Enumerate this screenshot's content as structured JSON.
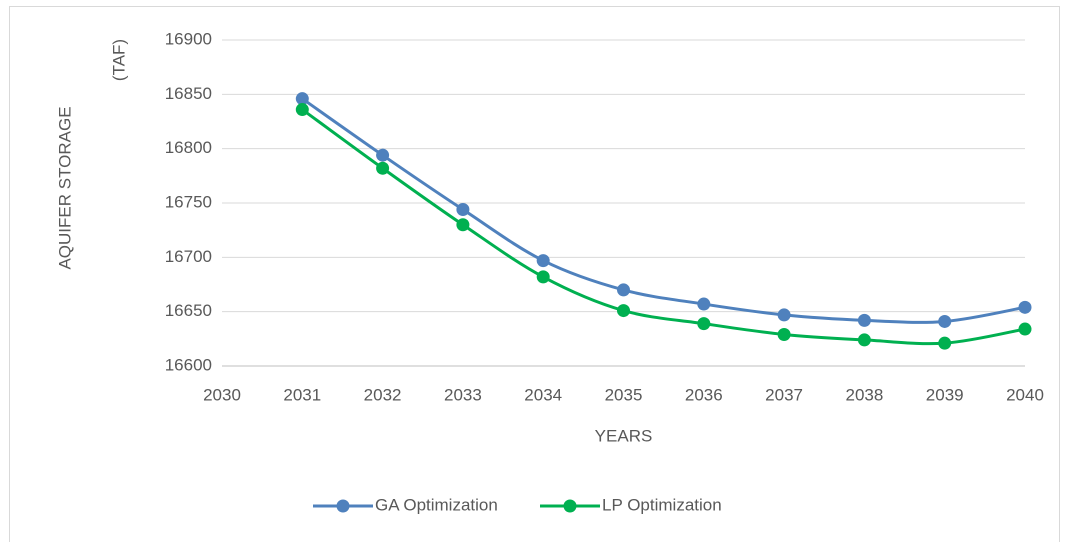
{
  "chart_data": {
    "type": "line",
    "y_label": [
      "AQUIFER  STORAGE",
      "(TAF)"
    ],
    "x_label": "YEARS",
    "x": [
      2031,
      2032,
      2033,
      2034,
      2035,
      2036,
      2037,
      2038,
      2039,
      2040
    ],
    "xlim": [
      2030,
      2040
    ],
    "xticks": [
      2030,
      2031,
      2032,
      2033,
      2034,
      2035,
      2036,
      2037,
      2038,
      2039,
      2040
    ],
    "ylim": [
      16600,
      16900
    ],
    "yticks": [
      16600,
      16650,
      16700,
      16750,
      16800,
      16850,
      16900
    ],
    "grid": true,
    "legend": "bottom",
    "series": [
      {
        "name": "GA Optimization",
        "color": "#4f81bd",
        "values": [
          16846,
          16794,
          16744,
          16697,
          16670,
          16657,
          16647,
          16642,
          16641,
          16654
        ]
      },
      {
        "name": "LP Optimization",
        "color": "#00b050",
        "values": [
          16836,
          16782,
          16730,
          16682,
          16651,
          16639,
          16629,
          16624,
          16621,
          16634
        ]
      }
    ]
  }
}
